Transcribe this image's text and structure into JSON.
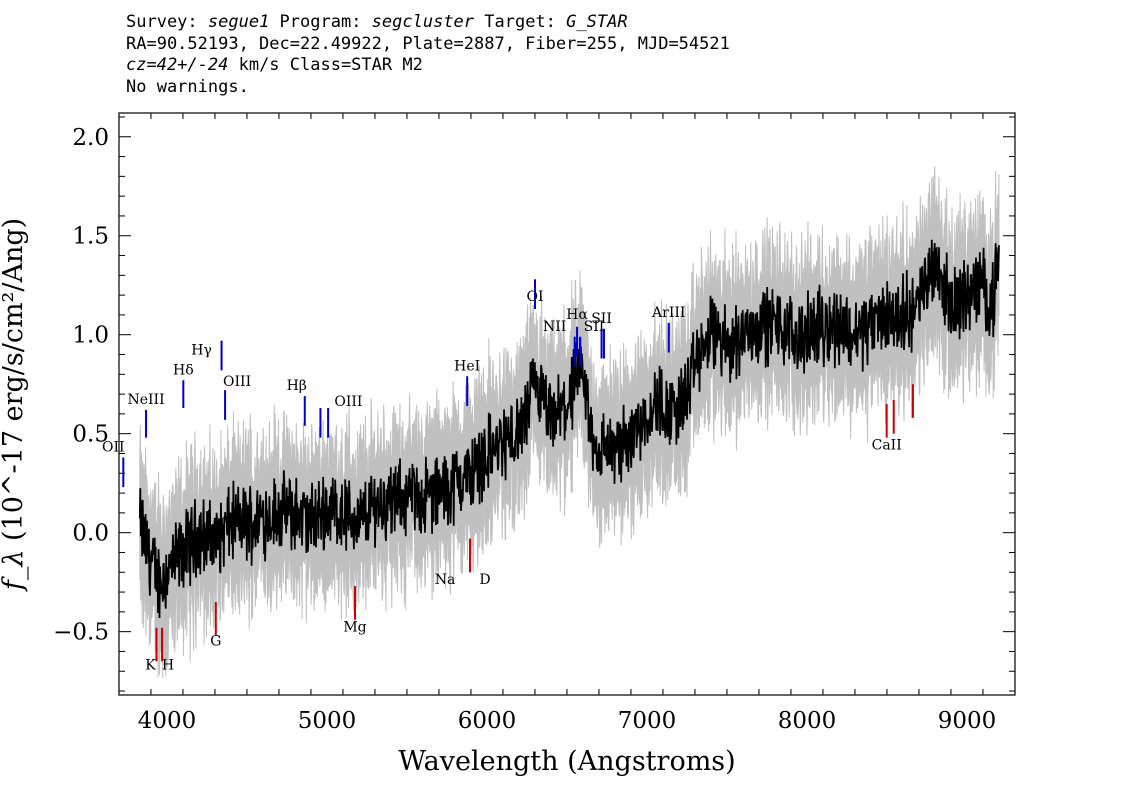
{
  "header": {
    "l1_a": "Survey: ",
    "l1_b": "segue1",
    "l1_c": " Program: ",
    "l1_d": "segcluster",
    "l1_e": " Target: ",
    "l1_f": "G_STAR",
    "l2": "RA=90.52193, Dec=22.49922, Plate=2887, Fiber=255, MJD=54521",
    "l3_a": "cz=42+/-24",
    "l3_b": " km/s Class=STAR M2",
    "l4": "No warnings."
  },
  "chart_data": {
    "type": "line",
    "xlabel": "Wavelength (Angstroms)",
    "ylabel": "f_λ (10^-17 erg/s/cm²/Ang)",
    "xlim": [
      3700,
      9300
    ],
    "ylim": [
      -0.82,
      2.12
    ],
    "xticks": [
      4000,
      5000,
      6000,
      7000,
      8000,
      9000
    ],
    "yticks": [
      -0.5,
      0.0,
      0.5,
      1.0,
      1.5,
      2.0
    ],
    "ytick_labels": [
      "−0.5",
      "0.0",
      "0.5",
      "1.0",
      "1.5",
      "2.0"
    ],
    "grid": false,
    "colors": {
      "flux": "#000000",
      "noise_band": "#c0c0c0",
      "emission": "#0000cc",
      "absorption": "#cc0000"
    },
    "series": [
      {
        "x": [
          3830,
          3900,
          3960,
          4000,
          4100,
          4200,
          4300,
          4400,
          4500,
          4600,
          4700,
          4800,
          4900,
          5000,
          5100,
          5200,
          5300,
          5400,
          5500,
          5600,
          5700,
          5800,
          5900,
          6000,
          6100,
          6200,
          6250,
          6300,
          6350,
          6400,
          6450,
          6500,
          6550,
          6600,
          6650,
          6700,
          6750,
          6800,
          6850,
          6900,
          6950,
          7000,
          7050,
          7100,
          7150,
          7200,
          7250,
          7300,
          7400,
          7500,
          7600,
          7700,
          7800,
          7900,
          8000,
          8100,
          8200,
          8300,
          8400,
          8500,
          8600,
          8700,
          8800,
          8850,
          8900,
          9000,
          9100,
          9150,
          9200
        ],
        "y": [
          0.05,
          -0.15,
          -0.25,
          -0.2,
          -0.1,
          0.0,
          -0.05,
          0.05,
          0.05,
          0.08,
          0.1,
          0.1,
          0.05,
          0.12,
          0.1,
          0.05,
          0.15,
          0.15,
          0.18,
          0.18,
          0.2,
          0.25,
          0.3,
          0.4,
          0.45,
          0.5,
          0.6,
          0.75,
          0.65,
          0.55,
          0.6,
          0.65,
          0.75,
          0.8,
          0.5,
          0.4,
          0.45,
          0.4,
          0.45,
          0.5,
          0.55,
          0.6,
          0.65,
          0.65,
          0.6,
          0.65,
          0.7,
          0.85,
          1.0,
          0.95,
          1.0,
          1.05,
          1.05,
          1.0,
          1.0,
          1.05,
          1.05,
          1.0,
          1.05,
          1.1,
          1.1,
          1.15,
          1.4,
          1.25,
          1.15,
          1.2,
          1.25,
          1.15,
          1.35
        ],
        "noise": 0.28
      }
    ],
    "emission_lines": [
      {
        "label": "OII",
        "x": 3727,
        "y0": 0.23,
        "y1": 0.38,
        "ly": 0.41,
        "dx": -10
      },
      {
        "label": "NeIII",
        "x": 3869,
        "y0": 0.48,
        "y1": 0.62,
        "ly": 0.65,
        "dx": 0
      },
      {
        "label": "Hδ",
        "x": 4102,
        "y0": 0.63,
        "y1": 0.77,
        "ly": 0.8,
        "dx": 0
      },
      {
        "label": "Hγ",
        "x": 4341,
        "y0": 0.82,
        "y1": 0.97,
        "ly": 0.9,
        "dx": -20
      },
      {
        "label": "OIII",
        "x": 4363,
        "y0": 0.57,
        "y1": 0.72,
        "ly": 0.74,
        "dx": 12
      },
      {
        "label": "Hβ",
        "x": 4861,
        "y0": 0.54,
        "y1": 0.69,
        "ly": 0.72,
        "dx": -8
      },
      {
        "label": "OIII",
        "x": 4959,
        "y0": 0.48,
        "y1": 0.63,
        "ly": 0.64,
        "dx": 28
      },
      {
        "label": "OIII",
        "x": 5007,
        "y0": 0.48,
        "y1": 0.63,
        "ly": null,
        "dx": 0
      },
      {
        "label": "HeI",
        "x": 5876,
        "y0": 0.64,
        "y1": 0.79,
        "ly": 0.82,
        "dx": 0
      },
      {
        "label": "OI",
        "x": 6300,
        "y0": 1.13,
        "y1": 1.28,
        "ly": 1.17,
        "dx": 0
      },
      {
        "label": "NII",
        "x": 6548,
        "y0": 0.84,
        "y1": 0.99,
        "ly": 1.02,
        "dx": -20
      },
      {
        "label": "Hα",
        "x": 6563,
        "y0": 0.89,
        "y1": 1.04,
        "ly": 1.08,
        "dx": 0
      },
      {
        "label": "NII",
        "x": 6583,
        "y0": 0.84,
        "y1": 0.99,
        "ly": null,
        "dx": 0
      },
      {
        "label": "SII",
        "x": 6716,
        "y0": 0.88,
        "y1": 1.03,
        "ly": 1.06,
        "dx": 0
      },
      {
        "label": "SII",
        "x": 6731,
        "y0": 0.88,
        "y1": 1.03,
        "ly": 1.02,
        "dx": -10
      },
      {
        "label": "ArIII",
        "x": 7136,
        "y0": 0.91,
        "y1": 1.06,
        "ly": 1.09,
        "dx": 0
      }
    ],
    "absorption_lines": [
      {
        "label": "K",
        "x": 3934,
        "y0": -0.65,
        "y1": -0.48,
        "ly": -0.69,
        "dx": -6
      },
      {
        "label": "H",
        "x": 3969,
        "y0": -0.65,
        "y1": -0.48,
        "ly": -0.69,
        "dx": 6
      },
      {
        "label": "G",
        "x": 4305,
        "y0": -0.52,
        "y1": -0.35,
        "ly": -0.57,
        "dx": 0
      },
      {
        "label": "Mg",
        "x": 5175,
        "y0": -0.44,
        "y1": -0.27,
        "ly": -0.5,
        "dx": 0
      },
      {
        "label": "Na",
        "x": 5894,
        "y0": -0.2,
        "y1": -0.03,
        "ly": -0.26,
        "dx": -25
      },
      {
        "label": "D",
        "x": 5894,
        "y0": -0.2,
        "y1": -0.03,
        "ly": -0.26,
        "dx": 15
      },
      {
        "label": "CaII",
        "x": 8498,
        "y0": 0.48,
        "y1": 0.65,
        "ly": 0.42,
        "dx": 0
      },
      {
        "label": "CaII",
        "x": 8542,
        "y0": 0.5,
        "y1": 0.67,
        "ly": null,
        "dx": 0
      },
      {
        "label": "CaII",
        "x": 8662,
        "y0": 0.58,
        "y1": 0.75,
        "ly": null,
        "dx": 0
      }
    ]
  }
}
